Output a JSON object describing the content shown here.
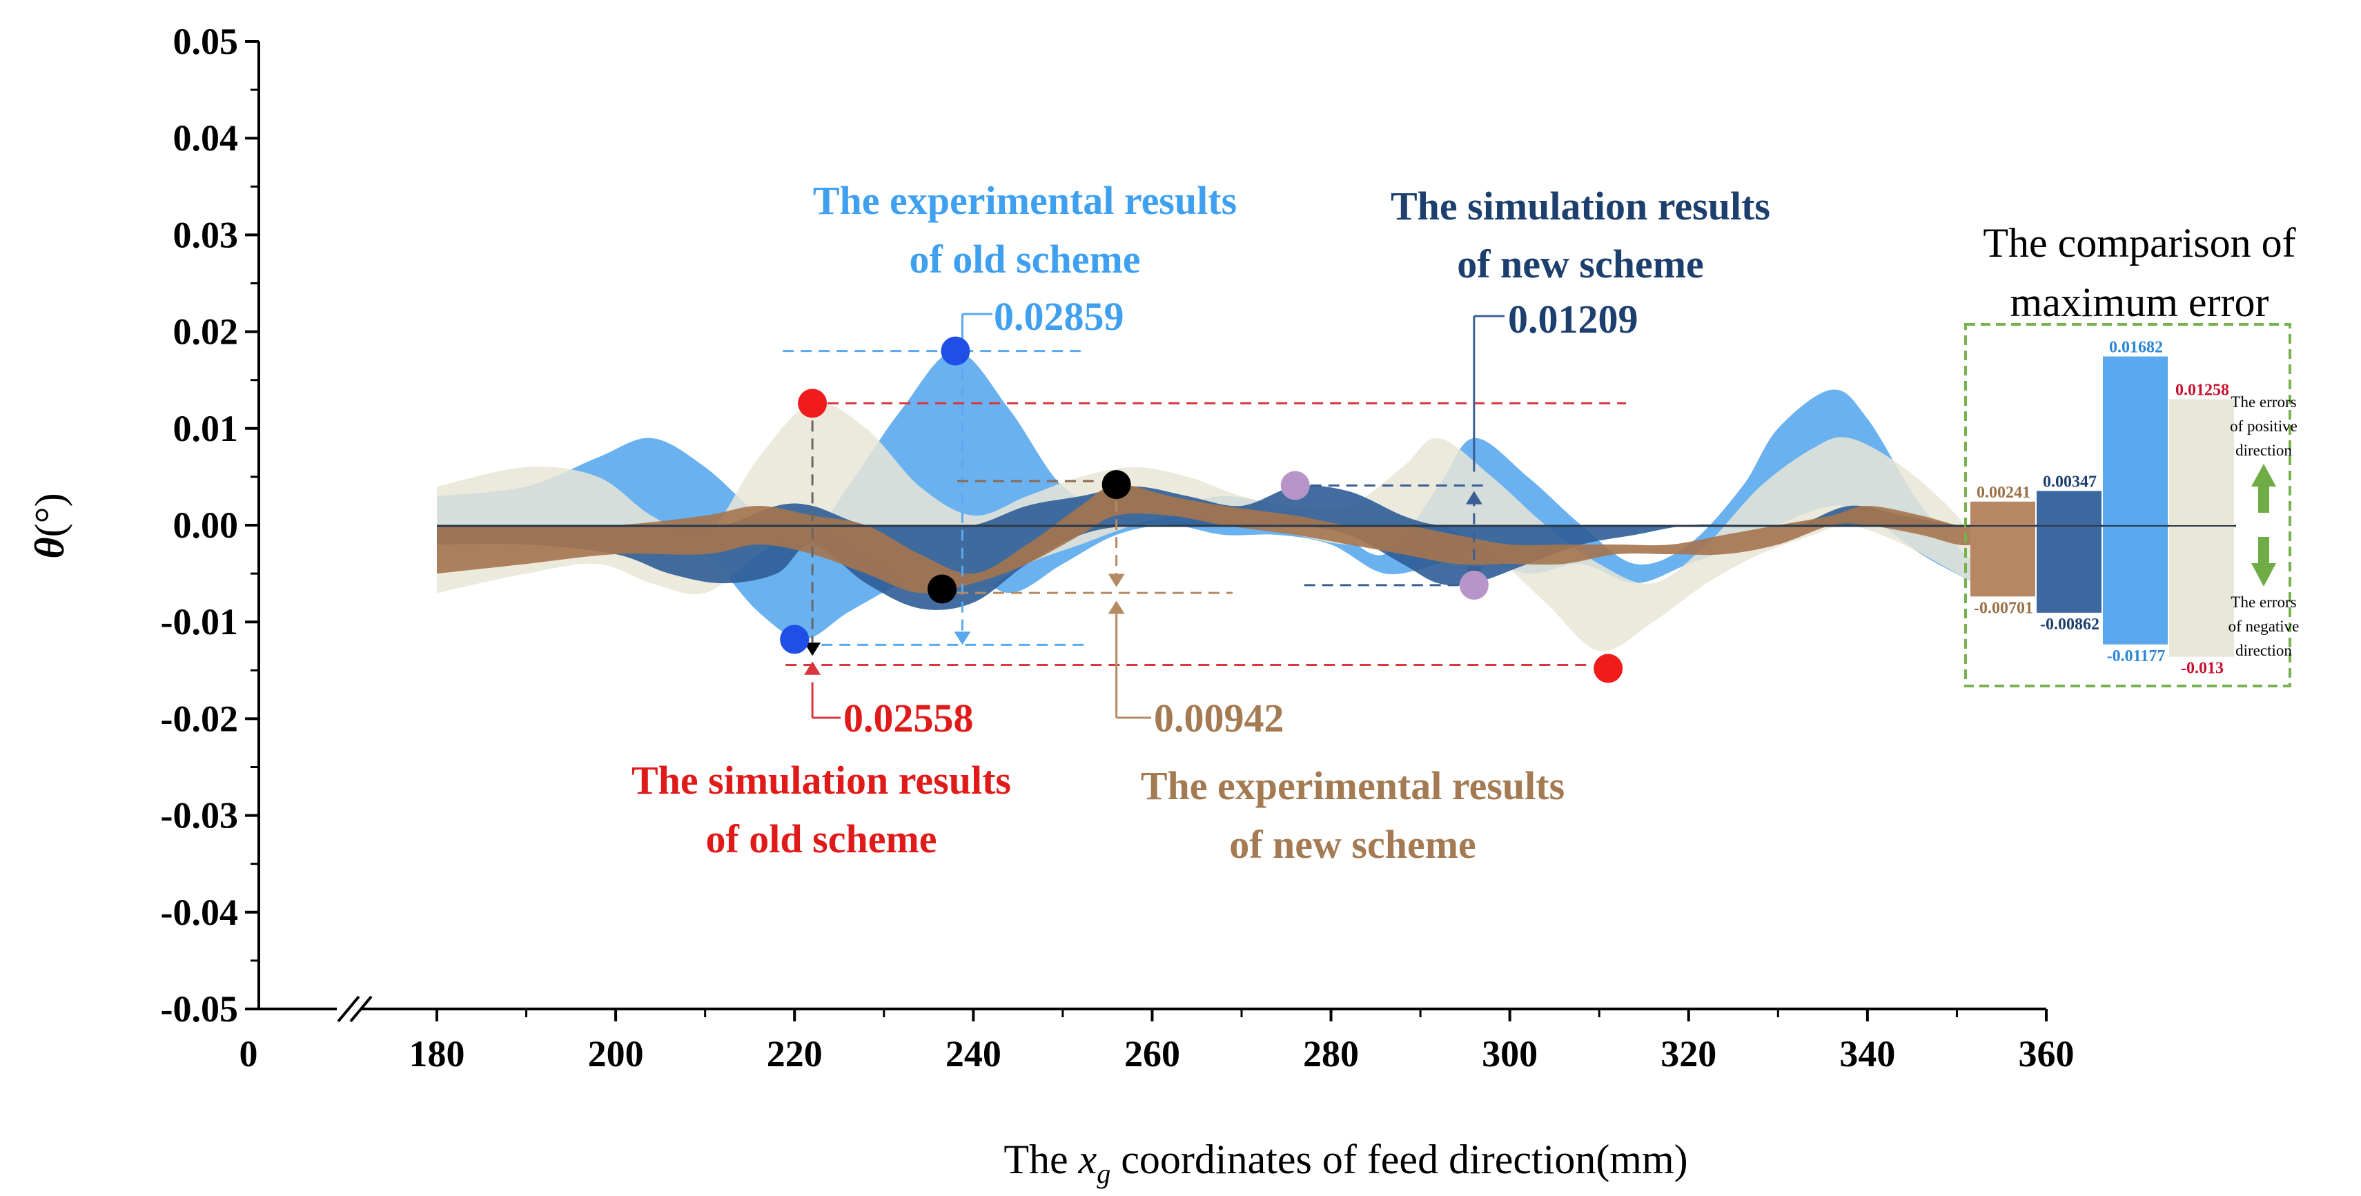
{
  "chart_data": {
    "type": "area",
    "title": "",
    "xlabel_prefix": "The",
    "xlabel_var": "x",
    "xlabel_sub": "g",
    "xlabel_suffix": "coordinates of feed direction(mm)",
    "ylabel_var": "θ",
    "ylabel_unit": "(°)",
    "x_tick_labels": [
      "0",
      "180",
      "200",
      "220",
      "240",
      "260",
      "280",
      "300",
      "320",
      "340",
      "360"
    ],
    "x_ticks": [
      180,
      200,
      220,
      240,
      260,
      280,
      300,
      320,
      340,
      360
    ],
    "xlim": [
      180,
      360
    ],
    "ylim": [
      -0.05,
      0.05
    ],
    "y_ticks": [
      0.05,
      0.04,
      0.03,
      0.02,
      0.01,
      0.0,
      -0.01,
      -0.02,
      -0.03,
      -0.04,
      -0.05
    ],
    "y_tick_labels": [
      "0.05",
      "0.04",
      "0.03",
      "0.02",
      "0.01",
      "0.00",
      "-0.01",
      "-0.02",
      "-0.03",
      "-0.04",
      "-0.05"
    ],
    "series": [
      {
        "name": "The experimental results of old scheme",
        "color": "#5aa9ee",
        "x": [
          180,
          190,
          198,
          204,
          210,
          216,
          221,
          226,
          232,
          238,
          244,
          250,
          256,
          262,
          268,
          274,
          280,
          286,
          292,
          296,
          302,
          308,
          314,
          320,
          326,
          330,
          336,
          340,
          346,
          352
        ],
        "upper": [
          0.003,
          0.004,
          0.007,
          0.009,
          0.006,
          0.001,
          -0.002,
          0.004,
          0.012,
          0.018,
          0.012,
          0.004,
          0.002,
          0.002,
          0.003,
          0.002,
          0.0,
          -0.003,
          0.004,
          0.009,
          0.005,
          0.0,
          -0.004,
          -0.002,
          0.004,
          0.01,
          0.014,
          0.011,
          0.002,
          -0.004
        ],
        "lower": [
          -0.004,
          -0.003,
          -0.002,
          -0.001,
          -0.003,
          -0.009,
          -0.0118,
          -0.009,
          -0.006,
          -0.004,
          -0.007,
          -0.004,
          -0.001,
          0.0,
          -0.001,
          -0.001,
          -0.002,
          -0.005,
          -0.004,
          -0.003,
          -0.005,
          -0.004,
          -0.006,
          -0.004,
          -0.002,
          0.0,
          0.002,
          0.001,
          -0.003,
          -0.006
        ]
      },
      {
        "name": "The simulation results of old scheme",
        "color": "#e8e6d6",
        "x": [
          180,
          190,
          198,
          204,
          210,
          216,
          222,
          228,
          234,
          240,
          246,
          252,
          258,
          264,
          270,
          276,
          282,
          288,
          292,
          298,
          304,
          310,
          316,
          322,
          328,
          334,
          338,
          344,
          350,
          352
        ],
        "upper": [
          0.004,
          0.006,
          0.005,
          0.001,
          -0.001,
          0.007,
          0.0126,
          0.01,
          0.004,
          0.001,
          0.003,
          0.005,
          0.006,
          0.005,
          0.003,
          0.002,
          0.002,
          0.006,
          0.009,
          0.005,
          0.0,
          -0.004,
          -0.006,
          -0.002,
          0.004,
          0.008,
          0.009,
          0.006,
          0.001,
          -0.002
        ],
        "lower": [
          -0.007,
          -0.005,
          -0.004,
          -0.006,
          -0.007,
          -0.003,
          0.0,
          -0.003,
          -0.006,
          -0.007,
          -0.004,
          -0.002,
          0.0,
          0.001,
          0.0,
          -0.001,
          -0.002,
          -0.001,
          0.0,
          -0.003,
          -0.008,
          -0.013,
          -0.01,
          -0.006,
          -0.003,
          -0.001,
          0.0,
          -0.002,
          -0.005,
          -0.006
        ]
      },
      {
        "name": "The simulation results of new scheme",
        "color": "#2f5d96",
        "x": [
          180,
          190,
          200,
          206,
          212,
          218,
          222,
          228,
          234,
          240,
          246,
          252,
          258,
          264,
          270,
          276,
          282,
          288,
          292,
          296,
          302,
          308,
          314,
          320,
          326,
          332,
          338,
          344,
          350,
          352
        ],
        "upper": [
          0.0,
          0.0,
          0.0,
          0.0,
          0.0,
          0.002,
          0.002,
          0.0,
          0.0,
          0.0,
          0.002,
          0.003,
          0.004,
          0.003,
          0.002,
          0.004,
          0.0035,
          0.001,
          0.0,
          0.0,
          0.0,
          0.0,
          0.0,
          0.0,
          0.0,
          0.0,
          0.002,
          0.001,
          0.0,
          0.0
        ],
        "lower": [
          -0.002,
          -0.002,
          -0.003,
          -0.005,
          -0.006,
          -0.005,
          -0.002,
          -0.006,
          -0.0086,
          -0.008,
          -0.004,
          -0.001,
          0.0,
          0.0,
          0.0,
          0.0,
          -0.001,
          -0.004,
          -0.006,
          -0.006,
          -0.004,
          -0.002,
          -0.001,
          0.0,
          0.0,
          0.0,
          0.0,
          0.0,
          0.0,
          0.0
        ]
      },
      {
        "name": "The experimental results of new scheme",
        "color": "#a5744e",
        "x": [
          180,
          190,
          200,
          210,
          216,
          222,
          228,
          234,
          240,
          246,
          252,
          256,
          262,
          268,
          276,
          282,
          288,
          294,
          300,
          306,
          312,
          318,
          324,
          330,
          336,
          340,
          346,
          350,
          352
        ],
        "upper": [
          0.0,
          0.0,
          0.0,
          0.001,
          0.002,
          0.001,
          0.0,
          -0.003,
          -0.005,
          -0.002,
          0.002,
          0.0042,
          0.003,
          0.002,
          0.001,
          0.0,
          0.0,
          -0.001,
          -0.002,
          -0.002,
          -0.002,
          -0.002,
          -0.001,
          0.0,
          0.001,
          0.002,
          0.001,
          0.0,
          0.0
        ],
        "lower": [
          -0.005,
          -0.004,
          -0.003,
          -0.003,
          -0.002,
          -0.003,
          -0.005,
          -0.007,
          -0.006,
          -0.004,
          -0.001,
          0.001,
          0.001,
          0.0,
          -0.001,
          -0.002,
          -0.003,
          -0.004,
          -0.004,
          -0.004,
          -0.003,
          -0.003,
          -0.003,
          -0.002,
          0.0,
          0.0,
          -0.001,
          -0.002,
          -0.002
        ]
      }
    ],
    "markers": [
      {
        "group": "exp-old",
        "color": "#1f4fe6",
        "x": 238,
        "y": 0.018
      },
      {
        "group": "exp-old",
        "color": "#1f4fe6",
        "x": 220,
        "y": -0.0118
      },
      {
        "group": "sim-old",
        "color": "#f01c1c",
        "x": 222,
        "y": 0.0126
      },
      {
        "group": "sim-old",
        "color": "#f01c1c",
        "x": 311,
        "y": -0.0148
      },
      {
        "group": "sim-new",
        "color": "#b895c8",
        "x": 276,
        "y": 0.0041
      },
      {
        "group": "sim-new",
        "color": "#b895c8",
        "x": 296,
        "y": -0.0062
      },
      {
        "group": "exp-new",
        "color": "#000000",
        "x": 256,
        "y": 0.0042
      },
      {
        "group": "exp-new",
        "color": "#000000",
        "x": 236.5,
        "y": -0.0066
      }
    ],
    "annotations": [
      {
        "id": "exp-old",
        "line1": "The experimental results",
        "line2": "of  old scheme",
        "value": "0.02859",
        "color": "#3fa0f0"
      },
      {
        "id": "sim-old",
        "line1": "The simulation results",
        "line2": "of old scheme",
        "value": "0.02558",
        "color": "#e01919"
      },
      {
        "id": "sim-new",
        "line1": "The simulation results",
        "line2": "of new scheme",
        "value": "0.01209",
        "color": "#1d3f6e"
      },
      {
        "id": "exp-new",
        "line1": "The experimental results",
        "line2": "of new scheme",
        "value": "0.00942",
        "color": "#a37a52"
      }
    ],
    "inset": {
      "title_line1": "The comparison of",
      "title_line2": "maximum error",
      "ylim": [
        -0.015,
        0.02
      ],
      "bars": [
        {
          "name": "experimental new",
          "color": "#b78764",
          "pos": 0.00241,
          "neg": -0.00701,
          "pos_label": "0.00241",
          "neg_label": "-0.00701",
          "label_color": "#9a7048"
        },
        {
          "name": "simulation new",
          "color": "#3c679f",
          "pos": 0.00347,
          "neg": -0.00862,
          "pos_label": "0.00347",
          "neg_label": "-0.00862",
          "label_color": "#1d3f6e"
        },
        {
          "name": "experimental old",
          "color": "#5aa9ee",
          "pos": 0.01682,
          "neg": -0.01177,
          "pos_label": "0.01682",
          "neg_label": "-0.01177",
          "label_color": "#2a86d6"
        },
        {
          "name": "simulation old",
          "color": "#e9e7d8",
          "pos": 0.01258,
          "neg": -0.013,
          "pos_label": "0.01258",
          "neg_label": "-0.013",
          "label_color": "#c8102e"
        }
      ],
      "positive_note": [
        "The errors",
        "of positive",
        "direction"
      ],
      "negative_note": [
        "The errors",
        "of negative",
        "direction"
      ],
      "arrow_color": "#6fac46"
    }
  }
}
